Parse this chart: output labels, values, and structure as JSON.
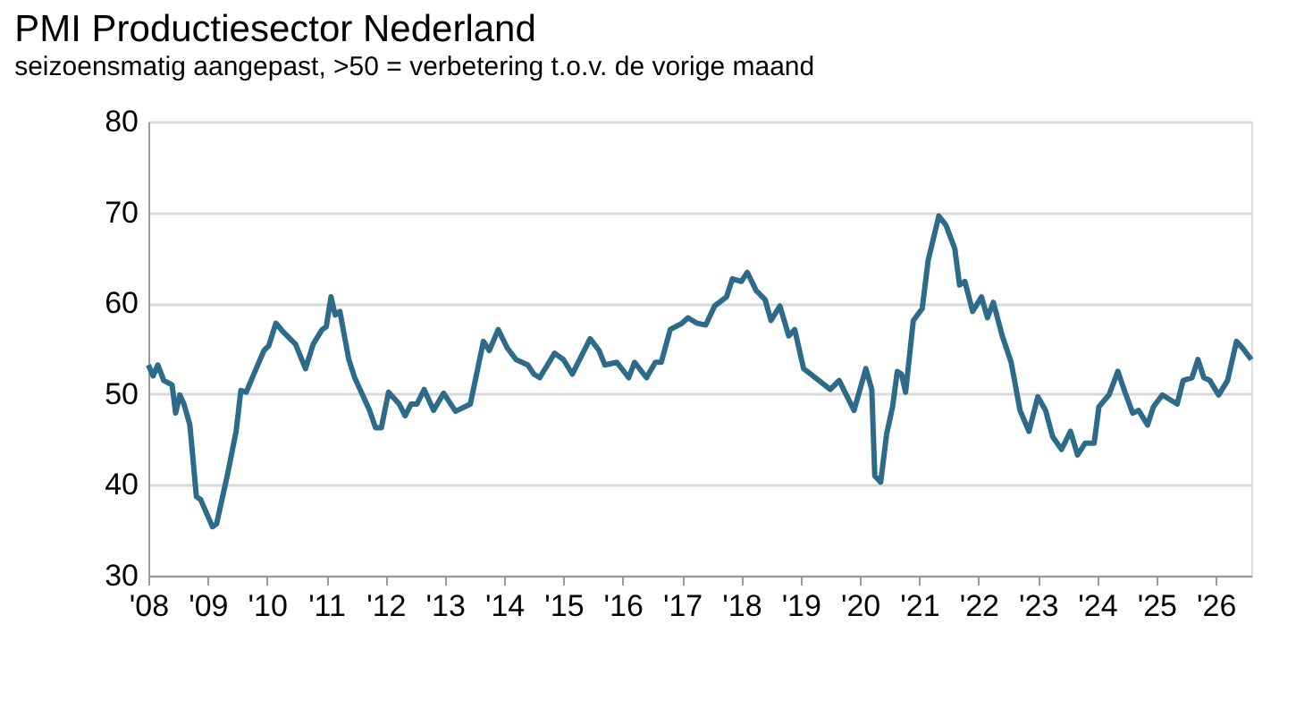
{
  "chart_data": {
    "type": "line",
    "title": "PMI Productiesector Nederland",
    "subtitle": "seizoensmatig aangepast, >50 = verbetering t.o.v. de vorige maand",
    "x": [
      2008.0,
      2008.08,
      2008.16,
      2008.26,
      2008.4,
      2008.46,
      2008.53,
      2008.6,
      2008.7,
      2008.81,
      2008.88,
      2009.08,
      2009.15,
      2009.33,
      2009.48,
      2009.56,
      2009.65,
      2009.78,
      2009.95,
      2010.03,
      2010.15,
      2010.28,
      2010.48,
      2010.65,
      2010.78,
      2010.93,
      2011.0,
      2011.08,
      2011.15,
      2011.23,
      2011.38,
      2011.48,
      2011.73,
      2011.83,
      2011.93,
      2012.05,
      2012.23,
      2012.33,
      2012.43,
      2012.53,
      2012.65,
      2012.81,
      2012.98,
      2013.18,
      2013.43,
      2013.65,
      2013.75,
      2013.9,
      2014.05,
      2014.2,
      2014.4,
      2014.5,
      2014.6,
      2014.85,
      2015.0,
      2015.15,
      2015.45,
      2015.6,
      2015.7,
      2015.9,
      2016.1,
      2016.2,
      2016.4,
      2016.55,
      2016.65,
      2016.8,
      2017.0,
      2017.1,
      2017.25,
      2017.4,
      2017.55,
      2017.75,
      2017.85,
      2018.0,
      2018.1,
      2018.25,
      2018.4,
      2018.5,
      2018.65,
      2018.8,
      2018.9,
      2019.05,
      2019.25,
      2019.5,
      2019.65,
      2019.9,
      2020.1,
      2020.2,
      2020.25,
      2020.35,
      2020.45,
      2020.55,
      2020.63,
      2020.7,
      2020.77,
      2020.9,
      2021.05,
      2021.15,
      2021.33,
      2021.45,
      2021.6,
      2021.68,
      2021.77,
      2021.9,
      2022.05,
      2022.15,
      2022.25,
      2022.4,
      2022.55,
      2022.7,
      2022.85,
      2023.0,
      2023.13,
      2023.25,
      2023.4,
      2023.55,
      2023.67,
      2023.8,
      2023.95,
      2024.03,
      2024.2,
      2024.35,
      2024.47,
      2024.6,
      2024.7,
      2024.85,
      2024.95,
      2025.1,
      2025.35,
      2025.45,
      2025.6,
      2025.7,
      2025.8,
      2025.9,
      2026.05,
      2026.2,
      2026.35,
      2026.45,
      2026.6
    ],
    "series": [
      {
        "color": "#2e6b8a",
        "values": [
          53.2,
          52.0,
          53.2,
          51.5,
          51.0,
          47.9,
          49.9,
          48.9,
          46.6,
          38.7,
          38.4,
          35.4,
          35.7,
          41.0,
          45.9,
          50.4,
          50.2,
          52.2,
          54.8,
          55.3,
          57.8,
          56.8,
          55.5,
          52.8,
          55.5,
          57.1,
          57.4,
          60.7,
          58.7,
          59.1,
          53.8,
          51.8,
          48.2,
          46.3,
          46.3,
          50.2,
          48.9,
          47.6,
          48.9,
          48.9,
          50.5,
          48.2,
          50.1,
          48.1,
          48.9,
          55.8,
          54.8,
          57.1,
          55.1,
          53.8,
          53.2,
          52.2,
          51.8,
          54.5,
          53.8,
          52.2,
          56.1,
          54.8,
          53.2,
          53.5,
          51.8,
          53.5,
          51.8,
          53.5,
          53.5,
          57.1,
          57.8,
          58.4,
          57.8,
          57.6,
          59.7,
          60.7,
          62.7,
          62.4,
          63.4,
          61.4,
          60.4,
          58.1,
          59.7,
          56.4,
          57.1,
          52.8,
          51.8,
          50.5,
          51.5,
          48.2,
          52.8,
          50.5,
          41.0,
          40.3,
          45.6,
          48.6,
          52.5,
          52.2,
          50.2,
          58.1,
          59.4,
          64.7,
          69.6,
          68.6,
          66.0,
          62.0,
          62.4,
          59.1,
          60.7,
          58.4,
          60.1,
          56.4,
          53.5,
          48.2,
          45.9,
          49.7,
          48.2,
          45.3,
          43.9,
          45.9,
          43.3,
          44.6,
          44.6,
          48.6,
          49.9,
          52.5,
          50.2,
          47.9,
          48.2,
          46.6,
          48.6,
          49.9,
          48.9,
          51.5,
          51.8,
          53.8,
          51.8,
          51.5,
          49.9,
          51.5,
          55.8,
          55.1,
          53.8
        ]
      }
    ],
    "xlim": [
      2008,
      2026.6
    ],
    "xticks": [
      {
        "value": 2008,
        "label": "'08"
      },
      {
        "value": 2009,
        "label": "'09"
      },
      {
        "value": 2010,
        "label": "'10"
      },
      {
        "value": 2011,
        "label": "'11"
      },
      {
        "value": 2012,
        "label": "'12"
      },
      {
        "value": 2013,
        "label": "'13"
      },
      {
        "value": 2014,
        "label": "'14"
      },
      {
        "value": 2015,
        "label": "'15"
      },
      {
        "value": 2016,
        "label": "'16"
      },
      {
        "value": 2017,
        "label": "'17"
      },
      {
        "value": 2018,
        "label": "'18"
      },
      {
        "value": 2019,
        "label": "'19"
      },
      {
        "value": 2020,
        "label": "'20"
      },
      {
        "value": 2021,
        "label": "'21"
      },
      {
        "value": 2022,
        "label": "'22"
      },
      {
        "value": 2023,
        "label": "'23"
      },
      {
        "value": 2024,
        "label": "'24"
      },
      {
        "value": 2025,
        "label": "'25"
      },
      {
        "value": 2026,
        "label": "'26"
      }
    ],
    "ylim": [
      30,
      80
    ],
    "yticks": [
      30,
      40,
      50,
      60,
      70,
      80
    ],
    "grid": "y",
    "legend": false,
    "marker": "none",
    "line_style": "solid"
  }
}
